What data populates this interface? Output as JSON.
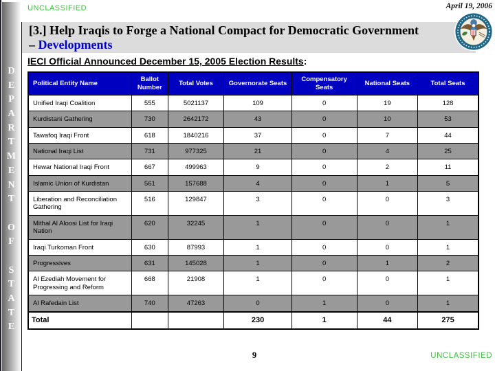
{
  "slide": {
    "classification_top": "UNCLASSIFIED",
    "classification_bottom": "UNCLASSIFIED",
    "date": "April 19, 2006",
    "page_number": "9",
    "title": {
      "line1": "[3.] Help Iraqis to Forge a National Compact for Democratic Government",
      "line2_prefix": "–",
      "line2_highlight": "Developments"
    },
    "sidebar_vertical_text": "DEPARTMENT OF STATE",
    "sidebar_letters": [
      "D",
      "E",
      "P",
      "A",
      "R",
      "T",
      "M",
      "E",
      "N",
      "T",
      "",
      "O",
      "F",
      "",
      "S",
      "T",
      "A",
      "T",
      "E"
    ],
    "seal_icon": "us-department-of-state-seal"
  },
  "heading": {
    "text": "IECI Official Announced December 15, 2005 Election Results",
    "suffix": ":"
  },
  "table": {
    "columns": [
      "Political Entity Name",
      "Ballot Number",
      "Total Votes",
      "Governorate Seats",
      "Compensatory Seats",
      "National Seats",
      "Total Seats"
    ],
    "rows": [
      [
        "Unified Iraqi Coalition",
        "555",
        "5021137",
        "109",
        "0",
        "19",
        "128"
      ],
      [
        "Kurdistani Gathering",
        "730",
        "2642172",
        "43",
        "0",
        "10",
        "53"
      ],
      [
        "Tawafoq Iraqi Front",
        "618",
        "1840216",
        "37",
        "0",
        "7",
        "44"
      ],
      [
        "National Iraqi List",
        "731",
        "977325",
        "21",
        "0",
        "4",
        "25"
      ],
      [
        "Hewar National Iraqi Front",
        "667",
        "499963",
        "9",
        "0",
        "2",
        "11"
      ],
      [
        "Islamic Union of Kurdistan",
        "561",
        "157688",
        "4",
        "0",
        "1",
        "5"
      ],
      [
        "Liberation and Reconciliation Gathering",
        "516",
        "129847",
        "3",
        "0",
        "0",
        "3"
      ],
      [
        "Mithal Al Aloosi List for Iraqi Nation",
        "620",
        "32245",
        "1",
        "0",
        "0",
        "1"
      ],
      [
        "Iraqi Turkoman Front",
        "630",
        "87993",
        "1",
        "0",
        "0",
        "1"
      ],
      [
        "Progressives",
        "631",
        "145028",
        "1",
        "0",
        "1",
        "2"
      ],
      [
        "Al Ezediah Movement for Progressing and Reform",
        "668",
        "21908",
        "1",
        "0",
        "0",
        "1"
      ],
      [
        "Al Rafedain List",
        "740",
        "47263",
        "0",
        "1",
        "0",
        "1"
      ]
    ],
    "total_row": [
      "Total",
      "",
      "",
      "230",
      "1",
      "44",
      "275"
    ]
  },
  "colors": {
    "classification-green": "#3fbf3f",
    "header-blue": "#0000c0",
    "title-blue": "#0000cc",
    "row-gray": "#999999",
    "title-bar-gray": "#dcdcdc"
  }
}
